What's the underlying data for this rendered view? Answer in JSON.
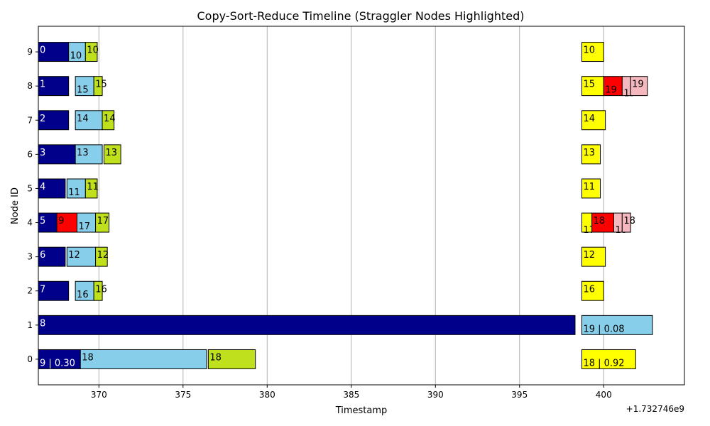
{
  "chart_data": {
    "type": "bar",
    "orientation": "horizontal",
    "title": "Copy-Sort-Reduce Timeline (Straggler Nodes Highlighted)",
    "xlabel": "Timestamp",
    "ylabel": "Node ID",
    "x_offset_label": "+1.732746e9",
    "xlim": [
      366.4,
      404.8
    ],
    "ylim": [
      -0.75,
      9.75
    ],
    "x_ticks": [
      370,
      375,
      380,
      385,
      390,
      395,
      400
    ],
    "x_tick_labels": [
      "370",
      "375",
      "380",
      "385",
      "390",
      "395",
      "400"
    ],
    "y_ticks": [
      0,
      1,
      2,
      3,
      4,
      5,
      6,
      7,
      8,
      9
    ],
    "y_tick_labels": [
      "0",
      "1",
      "2",
      "3",
      "4",
      "5",
      "6",
      "7",
      "8",
      "9"
    ],
    "straggler_nodes": [
      0,
      1
    ],
    "straggler_color": "#ff0000",
    "grid_x": true,
    "grid_y": false,
    "colors": {
      "navy": "#00008b",
      "skyblue": "#87ceeb",
      "lime": "#bfe11d",
      "yellow": "#ffff00",
      "red": "#ff0000",
      "pink": "#f4b8be"
    },
    "bars": [
      {
        "node": 9,
        "start": 366.4,
        "end": 368.2,
        "color": "navy",
        "label": "0",
        "label_color": "white",
        "label_pos": "top"
      },
      {
        "node": 9,
        "start": 368.2,
        "end": 369.2,
        "color": "skyblue",
        "label": "10",
        "label_color": "black",
        "label_pos": "bottom"
      },
      {
        "node": 9,
        "start": 369.2,
        "end": 369.9,
        "color": "lime",
        "label": "10",
        "label_color": "black",
        "label_pos": "top"
      },
      {
        "node": 9,
        "start": 398.7,
        "end": 400.0,
        "color": "yellow",
        "label": "10",
        "label_color": "black",
        "label_pos": "top"
      },
      {
        "node": 8,
        "start": 366.4,
        "end": 368.2,
        "color": "navy",
        "label": "1",
        "label_color": "white",
        "label_pos": "top"
      },
      {
        "node": 8,
        "start": 368.6,
        "end": 369.7,
        "color": "skyblue",
        "label": "15",
        "label_color": "black",
        "label_pos": "bottom"
      },
      {
        "node": 8,
        "start": 369.7,
        "end": 370.2,
        "color": "lime",
        "label": "15",
        "label_color": "black",
        "label_pos": "top"
      },
      {
        "node": 8,
        "start": 398.7,
        "end": 400.0,
        "color": "yellow",
        "label": "15",
        "label_color": "black",
        "label_pos": "top"
      },
      {
        "node": 8,
        "start": 400.0,
        "end": 401.1,
        "color": "red",
        "label": "19",
        "label_color": "black",
        "label_pos": "bottom"
      },
      {
        "node": 8,
        "start": 401.1,
        "end": 401.6,
        "color": "pink",
        "label": "19",
        "label_color": "black",
        "label_pos": "bottom2"
      },
      {
        "node": 8,
        "start": 401.6,
        "end": 402.6,
        "color": "pink",
        "label": "19",
        "label_color": "black",
        "label_pos": "top"
      },
      {
        "node": 7,
        "start": 366.4,
        "end": 368.2,
        "color": "navy",
        "label": "2",
        "label_color": "white",
        "label_pos": "top"
      },
      {
        "node": 7,
        "start": 368.6,
        "end": 370.2,
        "color": "skyblue",
        "label": "14",
        "label_color": "black",
        "label_pos": "top"
      },
      {
        "node": 7,
        "start": 370.2,
        "end": 370.9,
        "color": "lime",
        "label": "14",
        "label_color": "black",
        "label_pos": "top"
      },
      {
        "node": 7,
        "start": 398.7,
        "end": 400.1,
        "color": "yellow",
        "label": "14",
        "label_color": "black",
        "label_pos": "top"
      },
      {
        "node": 6,
        "start": 366.4,
        "end": 368.6,
        "color": "navy",
        "label": "3",
        "label_color": "white",
        "label_pos": "top"
      },
      {
        "node": 6,
        "start": 368.6,
        "end": 370.2,
        "color": "skyblue",
        "label": "13",
        "label_color": "black",
        "label_pos": "top"
      },
      {
        "node": 6,
        "start": 370.3,
        "end": 371.3,
        "color": "lime",
        "label": "13",
        "label_color": "black",
        "label_pos": "top"
      },
      {
        "node": 6,
        "start": 398.7,
        "end": 399.8,
        "color": "yellow",
        "label": "13",
        "label_color": "black",
        "label_pos": "top"
      },
      {
        "node": 5,
        "start": 366.4,
        "end": 368.0,
        "color": "navy",
        "label": "4",
        "label_color": "white",
        "label_pos": "top"
      },
      {
        "node": 5,
        "start": 368.1,
        "end": 369.2,
        "color": "skyblue",
        "label": "11",
        "label_color": "black",
        "label_pos": "bottom"
      },
      {
        "node": 5,
        "start": 369.2,
        "end": 369.9,
        "color": "lime",
        "label": "11",
        "label_color": "black",
        "label_pos": "top"
      },
      {
        "node": 5,
        "start": 398.7,
        "end": 399.8,
        "color": "yellow",
        "label": "11",
        "label_color": "black",
        "label_pos": "top"
      },
      {
        "node": 4,
        "start": 366.4,
        "end": 367.5,
        "color": "navy",
        "label": "5",
        "label_color": "white",
        "label_pos": "top"
      },
      {
        "node": 4,
        "start": 367.5,
        "end": 368.7,
        "color": "red",
        "label": "9",
        "label_color": "black",
        "label_pos": "top"
      },
      {
        "node": 4,
        "start": 368.7,
        "end": 369.8,
        "color": "skyblue",
        "label": "17",
        "label_color": "black",
        "label_pos": "bottom"
      },
      {
        "node": 4,
        "start": 369.8,
        "end": 370.6,
        "color": "lime",
        "label": "17",
        "label_color": "black",
        "label_pos": "top"
      },
      {
        "node": 4,
        "start": 398.7,
        "end": 399.3,
        "color": "yellow",
        "label": "17",
        "label_color": "black",
        "label_pos": "bottom2"
      },
      {
        "node": 4,
        "start": 399.3,
        "end": 400.6,
        "color": "red",
        "label": "18",
        "label_color": "black",
        "label_pos": "top"
      },
      {
        "node": 4,
        "start": 400.6,
        "end": 401.1,
        "color": "pink",
        "label": "18",
        "label_color": "black",
        "label_pos": "bottom2"
      },
      {
        "node": 4,
        "start": 401.1,
        "end": 401.6,
        "color": "pink",
        "label": "18",
        "label_color": "black",
        "label_pos": "top"
      },
      {
        "node": 3,
        "start": 366.4,
        "end": 368.0,
        "color": "navy",
        "label": "6",
        "label_color": "white",
        "label_pos": "top"
      },
      {
        "node": 3,
        "start": 368.1,
        "end": 369.8,
        "color": "skyblue",
        "label": "12",
        "label_color": "black",
        "label_pos": "top"
      },
      {
        "node": 3,
        "start": 369.8,
        "end": 370.5,
        "color": "lime",
        "label": "12",
        "label_color": "black",
        "label_pos": "top"
      },
      {
        "node": 3,
        "start": 398.7,
        "end": 400.1,
        "color": "yellow",
        "label": "12",
        "label_color": "black",
        "label_pos": "top"
      },
      {
        "node": 2,
        "start": 366.4,
        "end": 368.2,
        "color": "navy",
        "label": "7",
        "label_color": "white",
        "label_pos": "top"
      },
      {
        "node": 2,
        "start": 368.6,
        "end": 369.7,
        "color": "skyblue",
        "label": "16",
        "label_color": "black",
        "label_pos": "bottom"
      },
      {
        "node": 2,
        "start": 369.7,
        "end": 370.2,
        "color": "lime",
        "label": "16",
        "label_color": "black",
        "label_pos": "top"
      },
      {
        "node": 2,
        "start": 398.7,
        "end": 400.0,
        "color": "yellow",
        "label": "16",
        "label_color": "black",
        "label_pos": "top"
      },
      {
        "node": 1,
        "start": 366.4,
        "end": 398.3,
        "color": "navy",
        "label": "8",
        "label_color": "white",
        "label_pos": "top"
      },
      {
        "node": 1,
        "start": 398.7,
        "end": 402.9,
        "color": "skyblue",
        "label": "19 | 0.08",
        "label_color": "black",
        "label_pos": "bottom"
      },
      {
        "node": 0,
        "start": 366.4,
        "end": 368.9,
        "color": "navy",
        "label": "9 | 0.30",
        "label_color": "white",
        "label_pos": "bottom"
      },
      {
        "node": 0,
        "start": 368.9,
        "end": 376.4,
        "color": "skyblue",
        "label": "18",
        "label_color": "black",
        "label_pos": "top"
      },
      {
        "node": 0,
        "start": 376.5,
        "end": 379.3,
        "color": "lime",
        "label": "18",
        "label_color": "black",
        "label_pos": "top"
      },
      {
        "node": 0,
        "start": 398.7,
        "end": 401.9,
        "color": "yellow",
        "label": "18 | 0.92",
        "label_color": "black",
        "label_pos": "bottom"
      }
    ]
  }
}
